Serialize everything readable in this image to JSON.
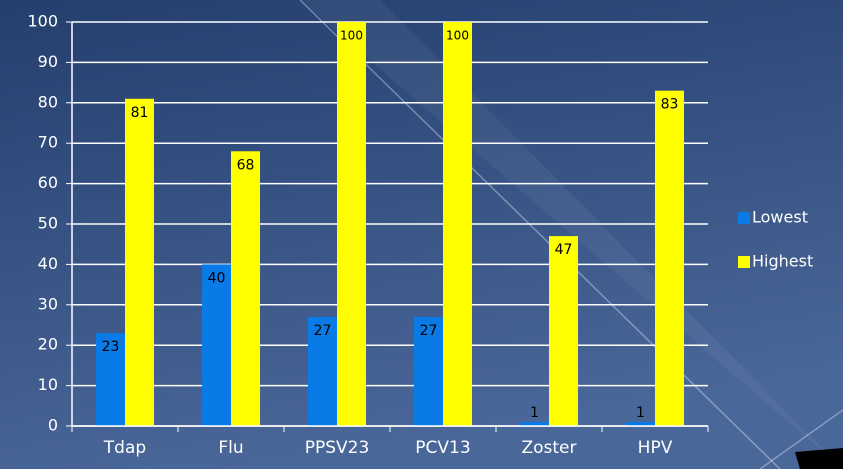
{
  "chart_data": {
    "type": "bar",
    "categories": [
      "Tdap",
      "Flu",
      "PPSV23",
      "PCV13",
      "Zoster",
      "HPV"
    ],
    "series": [
      {
        "name": "Lowest",
        "color": "#0a7ae6",
        "values": [
          23,
          40,
          27,
          27,
          1,
          1
        ]
      },
      {
        "name": "Highest",
        "color": "#ffff00",
        "values": [
          81,
          68,
          100,
          100,
          47,
          83
        ]
      }
    ],
    "ylim": [
      0,
      100
    ],
    "yticks": [
      0,
      10,
      20,
      30,
      40,
      50,
      60,
      70,
      80,
      90,
      100
    ],
    "grid": true,
    "legend": "right"
  }
}
